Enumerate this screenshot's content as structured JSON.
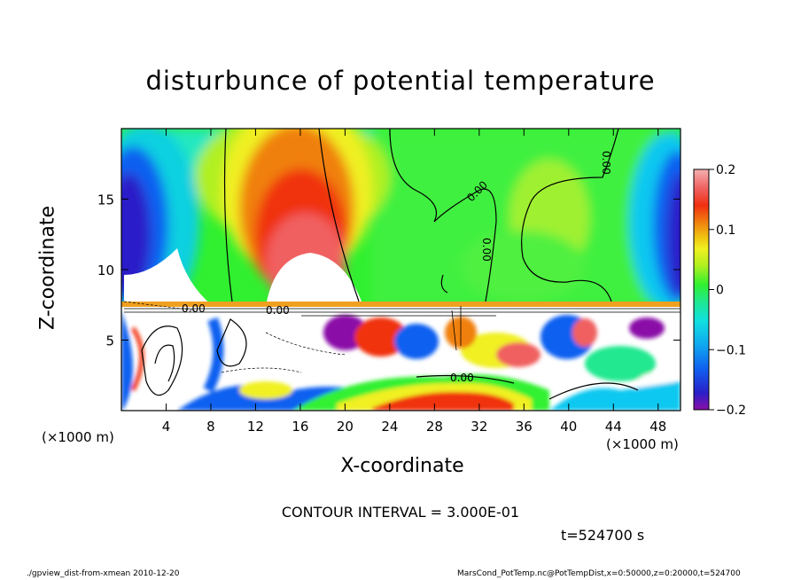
{
  "chart_data": {
    "type": "heatmap",
    "title": "disturbunce of potential temperature",
    "xlabel": "X-coordinate",
    "ylabel": "Z-coordinate",
    "x_unit": "(×1000 m)",
    "y_unit": "(×1000 m)",
    "xlim": [
      0,
      50
    ],
    "ylim": [
      0,
      20
    ],
    "x_ticks": [
      4,
      8,
      12,
      16,
      20,
      24,
      28,
      32,
      36,
      40,
      44,
      48
    ],
    "y_ticks": [
      5,
      10,
      15
    ],
    "colorbar": {
      "min": -0.2,
      "max": 0.2,
      "ticks": [
        "0.2",
        "0.1",
        "0",
        "−0.1",
        "−0.2"
      ],
      "tick_values": [
        0.2,
        0.1,
        0,
        -0.1,
        -0.2
      ]
    },
    "contour_label": "0.00",
    "contour_interval_text": "CONTOUR INTERVAL = 3.000E-01",
    "time_text": "t=524700 s"
  },
  "footer": {
    "left": "./gpview_dist-from-xmean  2010-12-20",
    "right": "MarsCond_PotTemp.nc@PotTempDist,x=0:50000,z=0:20000,t=524700"
  },
  "colors": {
    "scale": [
      "#8a0fa8",
      "#2a1fc8",
      "#1060f0",
      "#10a8f0",
      "#10e0e0",
      "#20e890",
      "#30f030",
      "#b0f020",
      "#f0f020",
      "#f0c010",
      "#f08010",
      "#f03010",
      "#f06060",
      "#f0a0a0",
      "#ffffff"
    ]
  }
}
